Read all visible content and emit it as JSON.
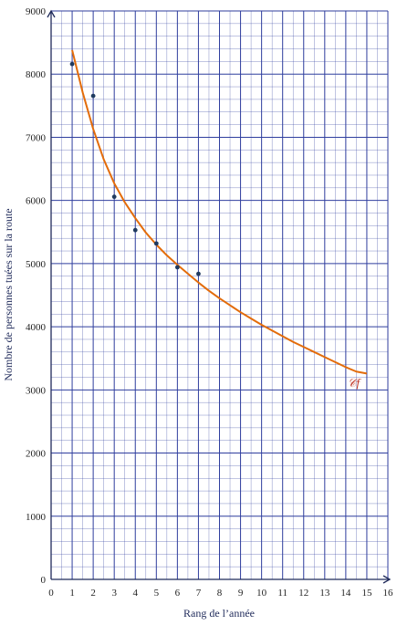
{
  "chart_data": {
    "type": "scatter",
    "title": "",
    "xlabel": "Rang de l’année",
    "ylabel": "Nombre de personnes tuées sur la route",
    "xlim": [
      0,
      16
    ],
    "ylim": [
      0,
      9000
    ],
    "x_ticks": [
      "0",
      "1",
      "2",
      "3",
      "4",
      "5",
      "6",
      "7",
      "8",
      "9",
      "10",
      "11",
      "12",
      "13",
      "14",
      "15",
      "16"
    ],
    "y_ticks": [
      "0",
      "1000",
      "2000",
      "3000",
      "4000",
      "5000",
      "6000",
      "7000",
      "8000",
      "9000"
    ],
    "grid": true,
    "points": {
      "x": [
        1,
        2,
        3,
        4,
        5,
        6,
        7
      ],
      "y": [
        8160,
        7655,
        6058,
        5530,
        5318,
        4942,
        4838
      ]
    },
    "curve": {
      "name": "𝒞f",
      "x": [
        1,
        1.5,
        2,
        2.5,
        3,
        3.5,
        4,
        4.5,
        5,
        5.5,
        6,
        6.5,
        7,
        7.5,
        8,
        8.5,
        9,
        9.5,
        10,
        10.5,
        11,
        11.5,
        12,
        12.5,
        13,
        13.5,
        14,
        14.5,
        15
      ],
      "y": [
        8380,
        7710,
        7130,
        6650,
        6270,
        5970,
        5720,
        5490,
        5300,
        5130,
        4980,
        4840,
        4700,
        4570,
        4450,
        4340,
        4230,
        4130,
        4030,
        3940,
        3850,
        3760,
        3680,
        3600,
        3520,
        3440,
        3360,
        3290,
        3260
      ]
    },
    "colors": {
      "grid": "#2f3e9e",
      "axis": "#1f2a5a",
      "curve": "#e36c0a",
      "points": "#1f3a5f",
      "curve_label": "#c0392b"
    }
  }
}
